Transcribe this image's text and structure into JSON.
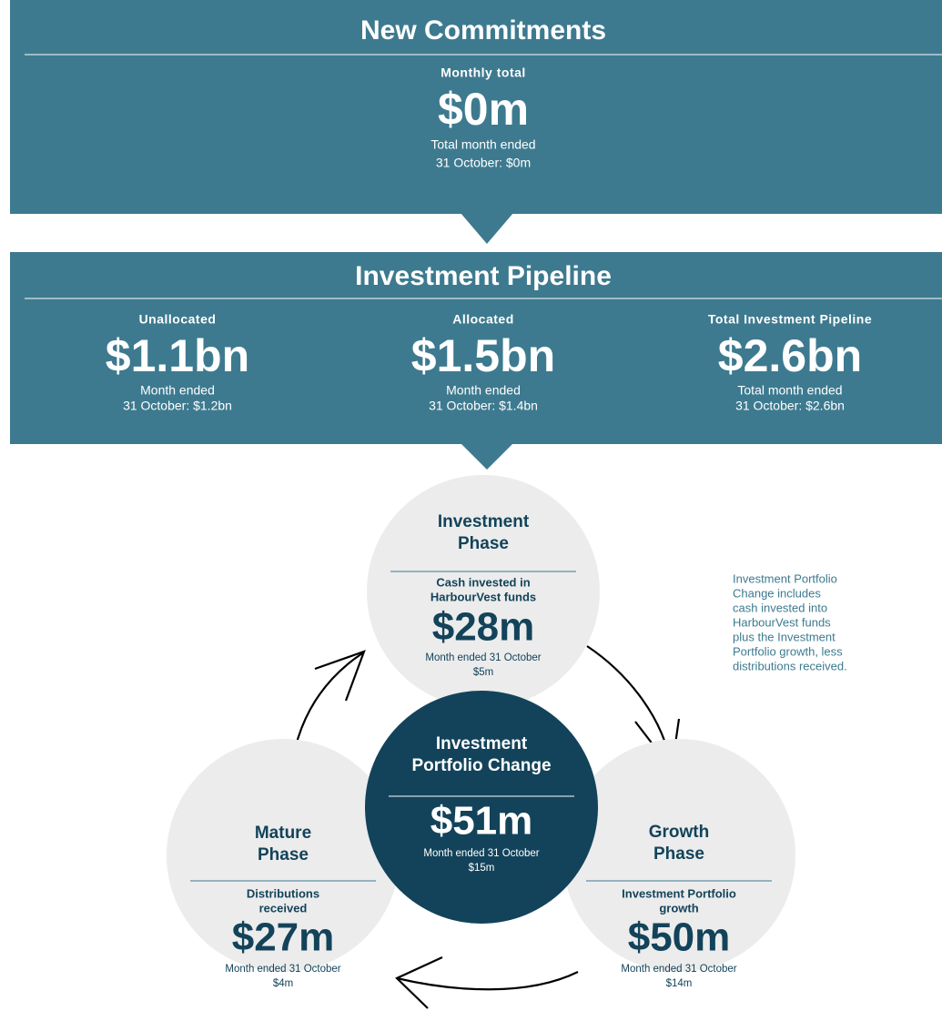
{
  "new_commitments": {
    "title": "New Commitments",
    "label": "Monthly total",
    "value": "$0m",
    "sub": [
      "Total month ended",
      "31 October: $0m"
    ]
  },
  "pipeline": {
    "title": "Investment Pipeline",
    "items": [
      {
        "label": "Unallocated",
        "value": "$1.1bn",
        "sub": [
          "Month ended",
          "31 October: $1.2bn"
        ]
      },
      {
        "label": "Allocated",
        "value": "$1.5bn",
        "sub": [
          "Month ended",
          "31 October: $1.4bn"
        ]
      },
      {
        "label": "Total Investment Pipeline",
        "value": "$2.6bn",
        "sub": [
          "Total month ended",
          "31 October: $2.6bn"
        ]
      }
    ]
  },
  "cycle": {
    "investment_phase": {
      "title": [
        "Investment",
        "Phase"
      ],
      "label": [
        "Cash invested in",
        "HarbourVest funds"
      ],
      "value": "$28m",
      "sub": [
        "Month ended 31 October",
        "$5m"
      ]
    },
    "portfolio_change": {
      "title": [
        "Investment",
        "Portfolio Change"
      ],
      "value": "$51m",
      "sub": [
        "Month ended 31 October",
        "$15m"
      ]
    },
    "mature_phase": {
      "title": [
        "Mature",
        "Phase"
      ],
      "label": [
        "Distributions",
        "received"
      ],
      "value": "$27m",
      "sub": [
        "Month ended 31 October",
        "$4m"
      ]
    },
    "growth_phase": {
      "title": [
        "Growth",
        "Phase"
      ],
      "label": [
        "Investment Portfolio",
        "growth"
      ],
      "value": "$50m",
      "sub": [
        "Month ended 31 October",
        "$14m"
      ]
    }
  },
  "note": [
    "Investment Portfolio",
    "Change includes",
    "cash invested into",
    "HarbourVest funds",
    "plus the Investment",
    "Portfolio growth, less",
    "distributions received."
  ]
}
